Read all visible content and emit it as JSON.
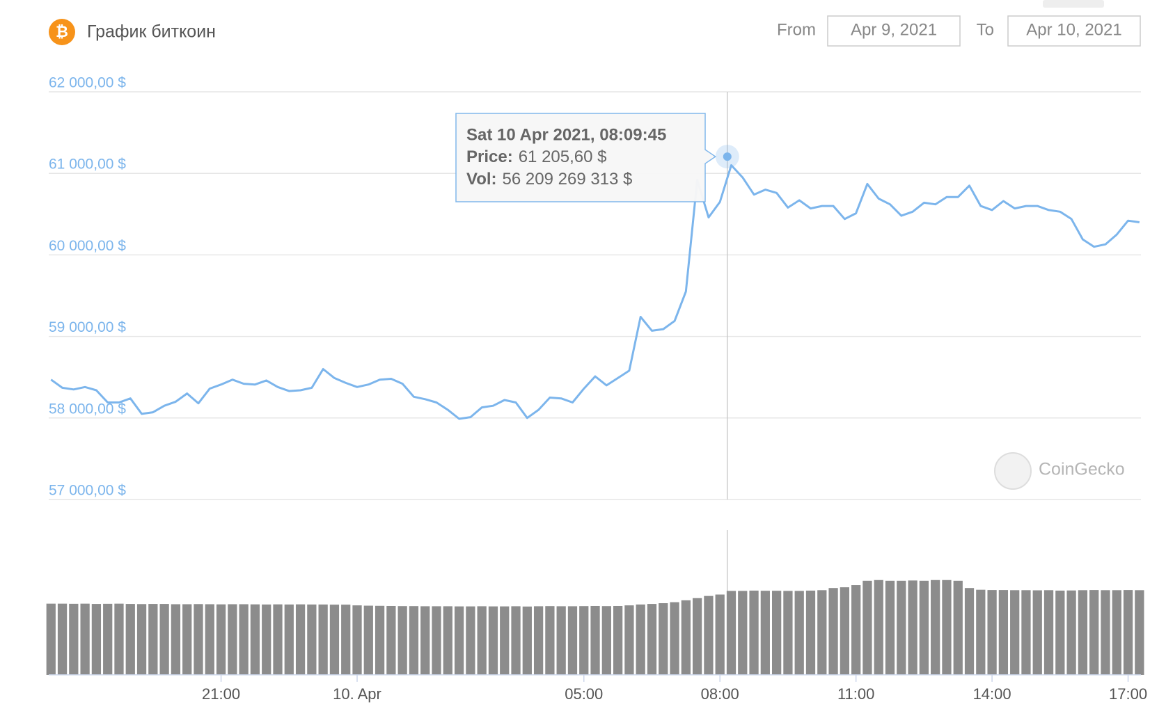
{
  "chart_data": {
    "type": "line",
    "title": "График биткоин",
    "from_label": "From",
    "from_value": "Apr 9, 2021",
    "to_label": "To",
    "to_value": "Apr 10, 2021",
    "watermark": "CoinGecko",
    "x": [
      "2021-04-09T17:15",
      "2021-04-09T17:30",
      "2021-04-09T17:45",
      "2021-04-09T18:00",
      "2021-04-09T18:15",
      "2021-04-09T18:30",
      "2021-04-09T18:45",
      "2021-04-09T19:00",
      "2021-04-09T19:15",
      "2021-04-09T19:30",
      "2021-04-09T19:45",
      "2021-04-09T20:00",
      "2021-04-09T20:15",
      "2021-04-09T20:30",
      "2021-04-09T20:45",
      "2021-04-09T21:00",
      "2021-04-09T21:15",
      "2021-04-09T21:30",
      "2021-04-09T21:45",
      "2021-04-09T22:00",
      "2021-04-09T22:15",
      "2021-04-09T22:30",
      "2021-04-09T22:45",
      "2021-04-09T23:00",
      "2021-04-09T23:15",
      "2021-04-09T23:30",
      "2021-04-09T23:45",
      "2021-04-10T00:00",
      "2021-04-10T00:15",
      "2021-04-10T00:30",
      "2021-04-10T00:45",
      "2021-04-10T01:00",
      "2021-04-10T01:15",
      "2021-04-10T01:30",
      "2021-04-10T01:45",
      "2021-04-10T02:00",
      "2021-04-10T02:15",
      "2021-04-10T02:30",
      "2021-04-10T02:45",
      "2021-04-10T03:00",
      "2021-04-10T03:15",
      "2021-04-10T03:30",
      "2021-04-10T03:45",
      "2021-04-10T04:00",
      "2021-04-10T04:15",
      "2021-04-10T04:30",
      "2021-04-10T04:45",
      "2021-04-10T05:00",
      "2021-04-10T05:15",
      "2021-04-10T05:30",
      "2021-04-10T05:45",
      "2021-04-10T06:00",
      "2021-04-10T06:15",
      "2021-04-10T06:30",
      "2021-04-10T06:45",
      "2021-04-10T07:00",
      "2021-04-10T07:15",
      "2021-04-10T07:30",
      "2021-04-10T07:45",
      "2021-04-10T08:00",
      "2021-04-10T08:15",
      "2021-04-10T08:30",
      "2021-04-10T08:45",
      "2021-04-10T09:00",
      "2021-04-10T09:15",
      "2021-04-10T09:30",
      "2021-04-10T09:45",
      "2021-04-10T10:00",
      "2021-04-10T10:15",
      "2021-04-10T10:30",
      "2021-04-10T10:45",
      "2021-04-10T11:00",
      "2021-04-10T11:15",
      "2021-04-10T11:30",
      "2021-04-10T11:45",
      "2021-04-10T12:00",
      "2021-04-10T12:15",
      "2021-04-10T12:30",
      "2021-04-10T12:45",
      "2021-04-10T13:00",
      "2021-04-10T13:15",
      "2021-04-10T13:30",
      "2021-04-10T13:45",
      "2021-04-10T14:00",
      "2021-04-10T14:15",
      "2021-04-10T14:30",
      "2021-04-10T14:45",
      "2021-04-10T15:00",
      "2021-04-10T15:15",
      "2021-04-10T15:30",
      "2021-04-10T15:45",
      "2021-04-10T16:00",
      "2021-04-10T16:15",
      "2021-04-10T16:30",
      "2021-04-10T16:45",
      "2021-04-10T17:00",
      "2021-04-10T17:15"
    ],
    "series": [
      {
        "type": "line",
        "color": "#7cb5ec",
        "values": [
          58470,
          58370,
          58350,
          58380,
          58340,
          58190,
          58190,
          58240,
          58050,
          58070,
          58150,
          58200,
          58300,
          58180,
          58360,
          58410,
          58470,
          58420,
          58410,
          58460,
          58380,
          58330,
          58340,
          58370,
          58600,
          58490,
          58430,
          58380,
          58410,
          58470,
          58480,
          58420,
          58260,
          58230,
          58190,
          58100,
          57990,
          58010,
          58130,
          58150,
          58220,
          58190,
          58000,
          58100,
          58250,
          58240,
          58190,
          58360,
          58510,
          58400,
          58490,
          58580,
          59240,
          59070,
          59090,
          59190,
          59550,
          60920,
          60460,
          60650,
          61100,
          60950,
          60740,
          60800,
          60760,
          60580,
          60670,
          60570,
          60600,
          60600,
          60440,
          60510,
          60870,
          60690,
          60620,
          60480,
          60530,
          60640,
          60620,
          60710,
          60710,
          60850,
          60600,
          60550,
          60660,
          60570,
          60600,
          60600,
          60550,
          60530,
          60440,
          60190,
          60100,
          60130,
          60250,
          60420,
          60400
        ]
      },
      {
        "type": "bar",
        "axis": "y2",
        "color": "#8c8c8c",
        "values": [
          49200000000.0,
          49200000000.0,
          49100000000.0,
          49200000000.0,
          49000000000.0,
          49100000000.0,
          49200000000.0,
          49000000000.0,
          48900000000.0,
          49000000000.0,
          49000000000.0,
          48800000000.0,
          48800000000.0,
          48900000000.0,
          48800000000.0,
          48700000000.0,
          48800000000.0,
          48800000000.0,
          48700000000.0,
          48600000000.0,
          48700000000.0,
          48600000000.0,
          48700000000.0,
          48600000000.0,
          48600000000.0,
          48500000000.0,
          48500000000.0,
          48000000000.0,
          47800000000.0,
          47700000000.0,
          47600000000.0,
          47500000000.0,
          47500000000.0,
          47400000000.0,
          47400000000.0,
          47400000000.0,
          47300000000.0,
          47300000000.0,
          47400000000.0,
          47300000000.0,
          47300000000.0,
          47400000000.0,
          47200000000.0,
          47400000000.0,
          47500000000.0,
          47400000000.0,
          47400000000.0,
          47500000000.0,
          47600000000.0,
          47500000000.0,
          47600000000.0,
          48000000000.0,
          48600000000.0,
          49000000000.0,
          49500000000.0,
          50200000000.0,
          51500000000.0,
          53000000000.0,
          54500000000.0,
          55500000000.0,
          58000000000.0,
          58000000000.0,
          58200000000.0,
          58100000000.0,
          58100000000.0,
          58000000000.0,
          58000000000.0,
          58200000000.0,
          58500000000.0,
          60000000000.0,
          60500000000.0,
          62000000000.0,
          65000000000.0,
          65500000000.0,
          65000000000.0,
          65000000000.0,
          65200000000.0,
          65000000000.0,
          65500000000.0,
          65500000000.0,
          65000000000.0,
          60000000000.0,
          58800000000.0,
          58600000000.0,
          58600000000.0,
          58500000000.0,
          58500000000.0,
          58400000000.0,
          58500000000.0,
          58200000000.0,
          58300000000.0,
          58500000000.0,
          58600000000.0,
          58500000000.0,
          58500000000.0,
          58600000000.0,
          58500000000.0
        ]
      }
    ],
    "xlim": [
      "2021-04-09T17:12",
      "2021-04-10T17:17"
    ],
    "xticks": [
      {
        "value": "2021-04-09T21:00",
        "label": "21:00"
      },
      {
        "value": "2021-04-10T00:00",
        "label": "10. Apr"
      },
      {
        "value": "2021-04-10T05:00",
        "label": "05:00"
      },
      {
        "value": "2021-04-10T08:00",
        "label": "08:00"
      },
      {
        "value": "2021-04-10T11:00",
        "label": "11:00"
      },
      {
        "value": "2021-04-10T14:00",
        "label": "14:00"
      },
      {
        "value": "2021-04-10T17:00",
        "label": "17:00"
      }
    ],
    "ylim": [
      57000,
      62000
    ],
    "yticks": [
      {
        "value": 57000,
        "label": "57 000,00 $"
      },
      {
        "value": 58000,
        "label": "58 000,00 $"
      },
      {
        "value": 59000,
        "label": "59 000,00 $"
      },
      {
        "value": 60000,
        "label": "60 000,00 $"
      },
      {
        "value": 61000,
        "label": "61 000,00 $"
      },
      {
        "value": 62000,
        "label": "62 000,00 $"
      }
    ],
    "y2lim": [
      0,
      100000000000.0
    ],
    "grid": true,
    "tooltip": {
      "x": "2021-04-10T08:09:45",
      "title": "Sat 10 Apr 2021, 08:09:45",
      "items": [
        {
          "label": "Price:",
          "value": 61205.6,
          "value_label": "61 205,60 $"
        },
        {
          "label": "Vol:",
          "value": 56209269313,
          "value_label": "56 209 269 313 $"
        }
      ]
    }
  }
}
